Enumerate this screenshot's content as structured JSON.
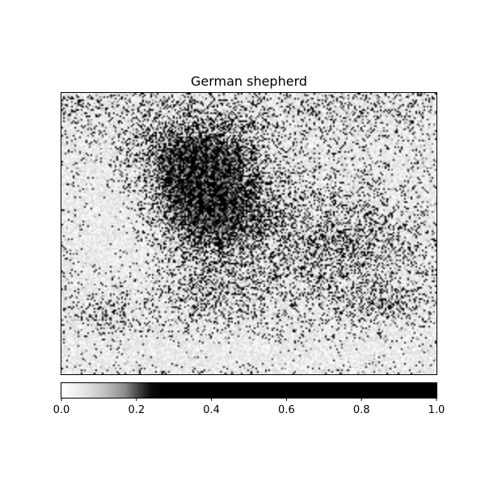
{
  "chart_data": {
    "type": "heatmap",
    "title": "German shepherd",
    "xlabel": "",
    "ylabel": "",
    "colormap": "gray_r",
    "value_range": [
      0.0,
      1.0
    ],
    "colorbar": {
      "orientation": "horizontal",
      "placement": "bottom",
      "ticks": [
        0.0,
        0.2,
        0.4,
        0.6,
        0.8,
        1.0
      ],
      "tick_labels": [
        "0.0",
        "0.2",
        "0.4",
        "0.6",
        "0.8",
        "1.0"
      ]
    },
    "axes_ticks_visible": false,
    "grid": false,
    "colors": {
      "low": "#ffffff",
      "high": "#000000",
      "frame": "#000000"
    }
  }
}
